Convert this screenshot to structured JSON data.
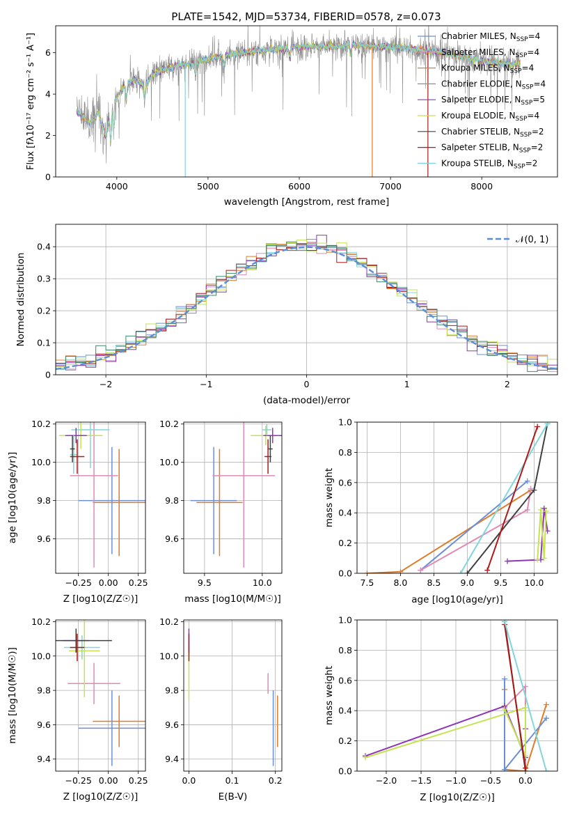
{
  "figure_title": "PLATE=1542, MJD=53734, FIBERID=0578, z=0.073",
  "legend_entries": [
    {
      "prefix": "Chabrier MILES, N",
      "sub": "SSP",
      "suffix": "=4",
      "color": "#6b8fd6"
    },
    {
      "prefix": "Salpeter MILES, N",
      "sub": "SSP",
      "suffix": "=4",
      "color": "#e08ab5"
    },
    {
      "prefix": "Kroupa MILES, N",
      "sub": "SSP",
      "suffix": "=4",
      "color": "#e07b28"
    },
    {
      "prefix": "Chabrier ELODIE, N",
      "sub": "SSP",
      "suffix": "=4",
      "color": "#909090"
    },
    {
      "prefix": "Salpeter ELODIE, N",
      "sub": "SSP",
      "suffix": "=5",
      "color": "#8e35b8"
    },
    {
      "prefix": "Kroupa ELODIE, N",
      "sub": "SSP",
      "suffix": "=4",
      "color": "#c4e34f"
    },
    {
      "prefix": "Chabrier STELIB, N",
      "sub": "SSP",
      "suffix": "=2",
      "color": "#404040"
    },
    {
      "prefix": "Salpeter STELIB, N",
      "sub": "SSP",
      "suffix": "=2",
      "color": "#b01818"
    },
    {
      "prefix": "Kroupa STELIB, N",
      "sub": "SSP",
      "suffix": "=2",
      "color": "#7fd6dc"
    }
  ],
  "chart_data": [
    {
      "id": "spectrum",
      "type": "line",
      "xlabel": "wavelength [Angstrom, rest frame]",
      "ylabel": "Flux [fλ10⁻¹⁷ erg cm⁻² s⁻¹ A⁻¹]",
      "xlim": [
        3330,
        8830
      ],
      "ylim": [
        0,
        7.3
      ],
      "xticks": [
        4000,
        5000,
        6000,
        7000,
        8000
      ],
      "yticks": [
        0,
        2,
        4,
        6
      ],
      "spectrum_range": [
        3560,
        8420
      ],
      "continuum": [
        [
          3560,
          3.2
        ],
        [
          3700,
          2.6
        ],
        [
          3800,
          3.1
        ],
        [
          3880,
          2.0
        ],
        [
          3950,
          3.6
        ],
        [
          4000,
          3.9
        ],
        [
          4100,
          4.5
        ],
        [
          4200,
          4.7
        ],
        [
          4300,
          4.4
        ],
        [
          4400,
          5.0
        ],
        [
          4600,
          5.3
        ],
        [
          4800,
          5.5
        ],
        [
          5000,
          5.7
        ],
        [
          5200,
          5.9
        ],
        [
          5400,
          6.0
        ],
        [
          5600,
          6.1
        ],
        [
          5800,
          6.2
        ],
        [
          6000,
          6.3
        ],
        [
          6200,
          6.3
        ],
        [
          6400,
          6.3
        ],
        [
          6600,
          6.4
        ],
        [
          6800,
          6.3
        ],
        [
          7000,
          6.3
        ],
        [
          7200,
          6.2
        ],
        [
          7400,
          6.1
        ],
        [
          7600,
          6.0
        ],
        [
          7800,
          5.8
        ],
        [
          8000,
          5.6
        ],
        [
          8200,
          5.5
        ],
        [
          8420,
          5.4
        ]
      ],
      "features": [
        [
          3934,
          1.6
        ],
        [
          3969,
          1.4
        ],
        [
          4102,
          0.8
        ],
        [
          4304,
          0.7
        ],
        [
          4862,
          0.6
        ],
        [
          5175,
          0.6
        ],
        [
          5893,
          0.4
        ],
        [
          6563,
          0.5
        ]
      ],
      "dropouts": [
        [
          4750,
          "#7fd6dc"
        ],
        [
          6800,
          "#e07b28"
        ],
        [
          7410,
          "#b01818"
        ]
      ],
      "series_colors": [
        "#808080",
        "#6b8fd6",
        "#e07b28",
        "#8e35b8",
        "#c4e34f",
        "#7fd6dc"
      ]
    },
    {
      "id": "residuals",
      "type": "histogram",
      "xlabel": "(data-model)/error",
      "ylabel": "Normed distribution",
      "xlim": [
        -2.5,
        2.5
      ],
      "ylim": [
        0,
        0.47
      ],
      "xticks": [
        -2,
        -1,
        0,
        1,
        2
      ],
      "yticks": [
        0.0,
        0.1,
        0.2,
        0.3,
        0.4
      ],
      "legend_label": "𝒩(0, 1)",
      "bin_width": 0.1,
      "series_colors": [
        "#6b8fd6",
        "#e08ab5",
        "#e07b28",
        "#7fd6dc",
        "#8e35b8",
        "#c4e34f",
        "#b01818",
        "#3a8a6a"
      ]
    },
    {
      "id": "age_vs_Z",
      "type": "errorbar",
      "xlabel": "Z [log10(Z/Z☉)]",
      "ylabel": "age [log10(age/yr)]",
      "xlim": [
        -0.44,
        0.31
      ],
      "ylim": [
        9.42,
        10.21
      ],
      "xticks": [
        -0.25,
        0.0,
        0.25
      ],
      "xticklabels": [
        "−0.25",
        "0.00",
        "0.25"
      ],
      "yticks": [
        9.6,
        9.8,
        10.0,
        10.2
      ],
      "yticklabels": [
        "9.6",
        "9.8",
        "10.0",
        "10.2"
      ],
      "points": [
        {
          "color": "#6b8fd6",
          "x": 0.03,
          "xerr": 0.28,
          "y": 9.8,
          "yerr": 0.28
        },
        {
          "color": "#e07b28",
          "x": 0.09,
          "xerr": 0.22,
          "y": 9.79,
          "yerr": 0.28
        },
        {
          "color": "#e08ab5",
          "x": -0.12,
          "xerr": 0.2,
          "y": 9.93,
          "yerr": 0.48
        },
        {
          "color": "#7fd6dc",
          "x": -0.15,
          "xerr": 0.16,
          "y": 10.17,
          "yerr": 0.2
        },
        {
          "color": "#c4e34f",
          "x": -0.23,
          "xerr": 0.18,
          "y": 10.14,
          "yerr": 0.07
        },
        {
          "color": "#8e35b8",
          "x": -0.27,
          "xerr": 0.09,
          "y": 10.14,
          "yerr": 0.04
        },
        {
          "color": "#7fd6dc",
          "x": -0.29,
          "xerr": 0.03,
          "y": 10.04,
          "yerr": 0.1
        },
        {
          "color": "#b01818",
          "x": -0.26,
          "xerr": 0.06,
          "y": 10.03,
          "yerr": 0.09
        },
        {
          "color": "#404040",
          "x": -0.3,
          "xerr": 0.02,
          "y": 10.07,
          "yerr": 0.07
        }
      ]
    },
    {
      "id": "age_vs_mass",
      "type": "errorbar",
      "xlabel": "mass [log10(M/M☉)]",
      "xlim": [
        9.32,
        10.17
      ],
      "ylim": [
        9.42,
        10.21
      ],
      "xticks": [
        9.5,
        10.0
      ],
      "xticklabels": [
        "9.5",
        "10.0"
      ],
      "yticks": [
        9.6,
        9.8,
        10.0,
        10.2
      ],
      "yticklabels": [
        "9.6",
        "9.8",
        "10.0",
        "10.2"
      ],
      "points": [
        {
          "color": "#6b8fd6",
          "x": 9.58,
          "xerr": 0.2,
          "y": 9.8,
          "yerr": 0.28
        },
        {
          "color": "#e07b28",
          "x": 9.63,
          "xerr": 0.2,
          "y": 9.79,
          "yerr": 0.28
        },
        {
          "color": "#e08ab5",
          "x": 9.84,
          "xerr": 0.27,
          "y": 9.93,
          "yerr": 0.48
        },
        {
          "color": "#c4e34f",
          "x": 10.03,
          "xerr": 0.13,
          "y": 10.14,
          "yerr": 0.05
        },
        {
          "color": "#8e35b8",
          "x": 10.09,
          "xerr": 0.08,
          "y": 10.14,
          "yerr": 0.04
        },
        {
          "color": "#7fd6dc",
          "x": 10.04,
          "xerr": 0.04,
          "y": 10.17,
          "yerr": 0.03
        },
        {
          "color": "#b01818",
          "x": 10.05,
          "xerr": 0.03,
          "y": 10.03,
          "yerr": 0.09
        },
        {
          "color": "#404040",
          "x": 10.07,
          "xerr": 0.02,
          "y": 10.07,
          "yerr": 0.07
        }
      ]
    },
    {
      "id": "weight_vs_age",
      "type": "line",
      "xlabel": "age [log10(age/yr)]",
      "ylabel": "mass weight",
      "xlim": [
        7.35,
        10.35
      ],
      "ylim": [
        0,
        1
      ],
      "xticks": [
        7.5,
        8.0,
        8.5,
        9.0,
        9.5,
        10.0
      ],
      "xticklabels": [
        "7.5",
        "8.0",
        "8.5",
        "9.0",
        "9.5",
        "10.0"
      ],
      "yticks": [
        0.0,
        0.2,
        0.4,
        0.6,
        0.8,
        1.0
      ],
      "yticklabels": [
        "0.0",
        "0.2",
        "0.4",
        "0.6",
        "0.8",
        "1.0"
      ],
      "series": [
        {
          "color": "#e07b28",
          "x": [
            7.5,
            8.0,
            9.95
          ],
          "y": [
            0.0,
            0.01,
            0.55
          ]
        },
        {
          "color": "#6b8fd6",
          "x": [
            8.3,
            9.9
          ],
          "y": [
            0.02,
            0.61
          ]
        },
        {
          "color": "#e08ab5",
          "x": [
            8.3,
            9.9,
            9.95
          ],
          "y": [
            0.02,
            0.42,
            0.56
          ]
        },
        {
          "color": "#404040",
          "x": [
            9.0,
            10.0,
            10.2
          ],
          "y": [
            0.0,
            0.55,
            0.99
          ]
        },
        {
          "color": "#7fd6dc",
          "x": [
            8.9,
            10.2
          ],
          "y": [
            0.0,
            0.99
          ]
        },
        {
          "color": "#b01818",
          "x": [
            9.3,
            10.05
          ],
          "y": [
            0.02,
            0.97
          ]
        },
        {
          "color": "#8e35b8",
          "x": [
            9.6,
            10.1,
            10.15,
            10.2
          ],
          "y": [
            0.08,
            0.09,
            0.43,
            0.28
          ]
        },
        {
          "color": "#c4e34f",
          "x": [
            10.05,
            10.1,
            10.15,
            10.18
          ],
          "y": [
            0.09,
            0.42,
            0.1,
            0.41
          ]
        }
      ]
    },
    {
      "id": "mass_vs_Z",
      "type": "errorbar",
      "xlabel": "Z [log10(Z/Z☉)]",
      "ylabel": "mass [log10(M/M☉)]",
      "xlim": [
        -0.44,
        0.31
      ],
      "ylim": [
        9.33,
        10.21
      ],
      "xticks": [
        -0.25,
        0.0,
        0.25
      ],
      "xticklabels": [
        "−0.25",
        "0.00",
        "0.25"
      ],
      "yticks": [
        9.4,
        9.6,
        9.8,
        10.0,
        10.2
      ],
      "yticklabels": [
        "9.4",
        "9.6",
        "9.8",
        "10.0",
        "10.2"
      ],
      "points": [
        {
          "color": "#6b8fd6",
          "x": 0.03,
          "xerr": 0.28,
          "y": 9.58,
          "yerr": 0.22
        },
        {
          "color": "#e07b28",
          "x": 0.09,
          "xerr": 0.22,
          "y": 9.62,
          "yerr": 0.15
        },
        {
          "color": "#e08ab5",
          "x": -0.12,
          "xerr": 0.22,
          "y": 9.84,
          "yerr": 0.12
        },
        {
          "color": "#c4e34f",
          "x": -0.2,
          "xerr": 0.13,
          "y": 10.03,
          "yerr": 0.27
        },
        {
          "color": "#7fd6dc",
          "x": -0.22,
          "xerr": 0.15,
          "y": 10.05,
          "yerr": 0.07
        },
        {
          "color": "#8e35b8",
          "x": -0.27,
          "xerr": 0.11,
          "y": 10.09,
          "yerr": 0.04
        },
        {
          "color": "#b01818",
          "x": -0.26,
          "xerr": 0.06,
          "y": 10.05,
          "yerr": 0.08
        },
        {
          "color": "#404040",
          "x": -0.27,
          "xerr": 0.3,
          "y": 10.09,
          "yerr": 0.07
        }
      ]
    },
    {
      "id": "mass_vs_ebv",
      "type": "errorbar",
      "xlabel": "E(B-V)",
      "xlim": [
        -0.012,
        0.215
      ],
      "ylim": [
        9.33,
        10.21
      ],
      "xticks": [
        0.0,
        0.1,
        0.2
      ],
      "xticklabels": [
        "0.0",
        "0.1",
        "0.2"
      ],
      "yticks": [
        9.4,
        9.6,
        9.8,
        10.0,
        10.2
      ],
      "yticklabels": [
        "9.4",
        "9.6",
        "9.8",
        "10.0",
        "10.2"
      ],
      "points": [
        {
          "color": "#6b8fd6",
          "x": 0.195,
          "xerr": 0,
          "y": 9.58,
          "yerr": 0.22
        },
        {
          "color": "#e07b28",
          "x": 0.205,
          "xerr": 0,
          "y": 9.62,
          "yerr": 0.15
        },
        {
          "color": "#e08ab5",
          "x": 0.183,
          "xerr": 0,
          "y": 9.84,
          "yerr": 0.06
        },
        {
          "color": "#c4e34f",
          "x": 0.0,
          "xerr": 0,
          "y": 9.9,
          "yerr": 0.16
        },
        {
          "color": "#8e35b8",
          "x": 0.0,
          "xerr": 0,
          "y": 10.09,
          "yerr": 0.07
        },
        {
          "color": "#b01818",
          "x": 0.0,
          "xerr": 0,
          "y": 10.05,
          "yerr": 0.08
        }
      ]
    },
    {
      "id": "weight_vs_Z",
      "type": "line",
      "xlabel": "Z [log10(Z/Z☉)]",
      "ylabel": "mass weight",
      "xlim": [
        -2.42,
        0.46
      ],
      "ylim": [
        0,
        1
      ],
      "xticks": [
        -2.0,
        -1.5,
        -1.0,
        -0.5,
        0.0
      ],
      "xticklabels": [
        "−2.0",
        "−1.5",
        "−1.0",
        "−0.5",
        "0.0"
      ],
      "yticks": [
        0.0,
        0.2,
        0.4,
        0.6,
        0.8,
        1.0
      ],
      "yticklabels": [
        "0.0",
        "0.2",
        "0.4",
        "0.6",
        "0.8",
        "1.0"
      ],
      "series": [
        {
          "color": "#e07b28",
          "x": [
            -0.3,
            -0.3,
            0.0,
            0.3
          ],
          "y": [
            0.54,
            0.01,
            0.0,
            0.44
          ]
        },
        {
          "color": "#6b8fd6",
          "x": [
            -0.3,
            -0.3,
            0.3
          ],
          "y": [
            0.61,
            0.01,
            0.35
          ]
        },
        {
          "color": "#e08ab5",
          "x": [
            -0.3,
            0.0,
            0.0
          ],
          "y": [
            0.42,
            0.56,
            0.02
          ]
        },
        {
          "color": "#8e35b8",
          "x": [
            -2.3,
            -0.3,
            0.0,
            0.0
          ],
          "y": [
            0.1,
            0.43,
            0.09,
            0.28
          ]
        },
        {
          "color": "#c4e34f",
          "x": [
            -2.3,
            0.0,
            0.0,
            -0.3
          ],
          "y": [
            0.09,
            0.42,
            0.1,
            0.41
          ]
        },
        {
          "color": "#404040",
          "x": [
            -0.3,
            0.0
          ],
          "y": [
            0.99,
            0.0
          ]
        },
        {
          "color": "#b01818",
          "x": [
            -0.3,
            0.0
          ],
          "y": [
            0.97,
            0.02
          ]
        },
        {
          "color": "#7fd6dc",
          "x": [
            -0.3,
            0.3
          ],
          "y": [
            0.99,
            0.0
          ]
        }
      ]
    }
  ]
}
